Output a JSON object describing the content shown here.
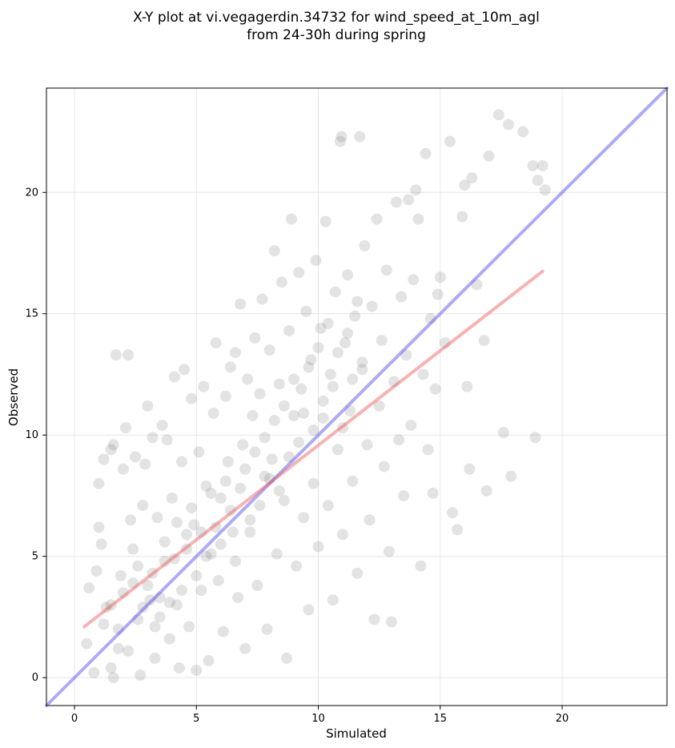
{
  "chart_data": {
    "type": "scatter",
    "title_lines": [
      "X-Y plot at vi.vegagerdin.34732 for wind_speed_at_10m_agl",
      "from 24-30h during spring"
    ],
    "xlabel": "Simulated",
    "ylabel": "Observed",
    "xlim": [
      -1.15,
      24.3
    ],
    "ylim": [
      -1.15,
      24.3
    ],
    "xticks": [
      0,
      5,
      10,
      15,
      20
    ],
    "yticks": [
      0,
      5,
      10,
      15,
      20
    ],
    "grid": true,
    "point_color": "#666666",
    "point_opacity": 0.18,
    "identity_line": {
      "color": "#4444ee",
      "from": [
        -1.15,
        -1.15
      ],
      "to": [
        24.3,
        24.3
      ]
    },
    "fit_line": {
      "color": "#ee5555",
      "from": [
        0.4,
        2.1
      ],
      "to": [
        19.2,
        16.75
      ]
    },
    "points": [
      [
        0.5,
        1.4
      ],
      [
        0.6,
        3.7
      ],
      [
        0.8,
        0.2
      ],
      [
        0.9,
        4.4
      ],
      [
        1.0,
        6.2
      ],
      [
        1.1,
        5.5
      ],
      [
        1.0,
        8.0
      ],
      [
        1.2,
        9.0
      ],
      [
        1.3,
        2.9
      ],
      [
        1.5,
        9.4
      ],
      [
        1.6,
        9.6
      ],
      [
        1.7,
        13.3
      ],
      [
        1.5,
        0.4
      ],
      [
        1.6,
        0.0
      ],
      [
        1.8,
        1.2
      ],
      [
        1.9,
        4.2
      ],
      [
        2.0,
        8.6
      ],
      [
        2.1,
        10.3
      ],
      [
        2.2,
        13.3
      ],
      [
        2.3,
        6.5
      ],
      [
        2.4,
        5.3
      ],
      [
        2.5,
        9.1
      ],
      [
        2.6,
        2.4
      ],
      [
        2.7,
        0.1
      ],
      [
        2.8,
        7.1
      ],
      [
        2.9,
        8.8
      ],
      [
        3.0,
        11.2
      ],
      [
        3.1,
        3.2
      ],
      [
        3.2,
        9.9
      ],
      [
        3.3,
        0.8
      ],
      [
        3.4,
        6.6
      ],
      [
        3.5,
        2.5
      ],
      [
        3.6,
        10.4
      ],
      [
        3.7,
        4.8
      ],
      [
        3.8,
        9.8
      ],
      [
        3.9,
        1.6
      ],
      [
        4.0,
        7.4
      ],
      [
        4.1,
        12.4
      ],
      [
        4.2,
        3.0
      ],
      [
        4.3,
        0.4
      ],
      [
        4.4,
        8.9
      ],
      [
        4.5,
        12.7
      ],
      [
        4.6,
        5.9
      ],
      [
        4.7,
        2.1
      ],
      [
        4.8,
        11.5
      ],
      [
        4.9,
        6.3
      ],
      [
        5.0,
        0.3
      ],
      [
        5.1,
        9.3
      ],
      [
        5.2,
        3.6
      ],
      [
        5.3,
        12.0
      ],
      [
        5.4,
        7.9
      ],
      [
        5.5,
        0.7
      ],
      [
        5.6,
        5.1
      ],
      [
        5.7,
        10.9
      ],
      [
        5.8,
        13.8
      ],
      [
        5.9,
        4.0
      ],
      [
        6.0,
        7.4
      ],
      [
        6.1,
        1.9
      ],
      [
        6.2,
        11.6
      ],
      [
        6.3,
        8.9
      ],
      [
        6.4,
        12.8
      ],
      [
        6.5,
        6.0
      ],
      [
        6.6,
        13.4
      ],
      [
        6.7,
        3.3
      ],
      [
        6.8,
        15.4
      ],
      [
        6.9,
        9.6
      ],
      [
        7.0,
        1.2
      ],
      [
        7.1,
        12.3
      ],
      [
        7.2,
        6.5
      ],
      [
        7.3,
        10.8
      ],
      [
        7.4,
        14.0
      ],
      [
        7.5,
        3.8
      ],
      [
        7.6,
        11.7
      ],
      [
        7.7,
        15.6
      ],
      [
        7.8,
        8.3
      ],
      [
        7.9,
        2.0
      ],
      [
        8.0,
        13.5
      ],
      [
        8.1,
        9.0
      ],
      [
        8.2,
        17.6
      ],
      [
        8.3,
        5.1
      ],
      [
        8.4,
        12.1
      ],
      [
        8.5,
        16.3
      ],
      [
        8.6,
        7.3
      ],
      [
        8.7,
        0.8
      ],
      [
        8.8,
        14.3
      ],
      [
        8.9,
        18.9
      ],
      [
        9.0,
        10.8
      ],
      [
        9.1,
        4.6
      ],
      [
        9.2,
        16.7
      ],
      [
        9.3,
        11.9
      ],
      [
        9.4,
        6.6
      ],
      [
        9.5,
        15.1
      ],
      [
        9.6,
        2.8
      ],
      [
        9.7,
        13.1
      ],
      [
        9.8,
        8.0
      ],
      [
        9.9,
        17.2
      ],
      [
        10.0,
        5.4
      ],
      [
        10.1,
        14.4
      ],
      [
        10.2,
        10.7
      ],
      [
        10.3,
        18.8
      ],
      [
        10.4,
        7.1
      ],
      [
        10.5,
        12.5
      ],
      [
        10.6,
        3.2
      ],
      [
        10.7,
        15.9
      ],
      [
        10.8,
        9.4
      ],
      [
        10.9,
        22.1
      ],
      [
        10.95,
        22.3
      ],
      [
        11.0,
        5.9
      ],
      [
        11.1,
        13.8
      ],
      [
        11.2,
        16.6
      ],
      [
        11.3,
        11.0
      ],
      [
        11.4,
        8.1
      ],
      [
        11.5,
        14.9
      ],
      [
        11.6,
        4.3
      ],
      [
        11.7,
        22.3
      ],
      [
        11.8,
        12.7
      ],
      [
        11.9,
        17.8
      ],
      [
        12.0,
        9.6
      ],
      [
        12.1,
        6.5
      ],
      [
        12.2,
        15.3
      ],
      [
        12.3,
        2.4
      ],
      [
        12.4,
        18.9
      ],
      [
        12.5,
        11.2
      ],
      [
        12.6,
        13.9
      ],
      [
        12.7,
        8.7
      ],
      [
        12.8,
        16.8
      ],
      [
        12.9,
        5.2
      ],
      [
        13.0,
        2.3
      ],
      [
        13.1,
        12.2
      ],
      [
        13.2,
        19.6
      ],
      [
        13.3,
        9.8
      ],
      [
        13.4,
        15.7
      ],
      [
        13.5,
        7.5
      ],
      [
        13.6,
        13.3
      ],
      [
        13.7,
        19.7
      ],
      [
        13.8,
        10.4
      ],
      [
        13.9,
        16.4
      ],
      [
        14.0,
        20.1
      ],
      [
        14.1,
        18.9
      ],
      [
        14.2,
        4.6
      ],
      [
        14.3,
        12.5
      ],
      [
        14.4,
        21.6
      ],
      [
        14.5,
        9.4
      ],
      [
        14.6,
        14.8
      ],
      [
        14.7,
        7.6
      ],
      [
        14.8,
        11.9
      ],
      [
        14.9,
        15.8
      ],
      [
        15.0,
        16.5
      ],
      [
        15.2,
        13.8
      ],
      [
        15.4,
        22.1
      ],
      [
        15.5,
        6.8
      ],
      [
        15.7,
        6.1
      ],
      [
        15.9,
        19.0
      ],
      [
        16.0,
        20.3
      ],
      [
        16.1,
        12.0
      ],
      [
        16.2,
        8.6
      ],
      [
        16.3,
        20.6
      ],
      [
        16.5,
        16.2
      ],
      [
        16.8,
        13.9
      ],
      [
        16.9,
        7.7
      ],
      [
        17.0,
        21.5
      ],
      [
        17.4,
        23.2
      ],
      [
        17.6,
        10.1
      ],
      [
        17.8,
        22.8
      ],
      [
        17.9,
        8.3
      ],
      [
        18.4,
        22.5
      ],
      [
        18.8,
        21.1
      ],
      [
        18.9,
        9.9
      ],
      [
        19.0,
        20.5
      ],
      [
        19.2,
        21.1
      ],
      [
        19.3,
        20.1
      ],
      [
        1.2,
        2.2
      ],
      [
        1.5,
        3.0
      ],
      [
        1.8,
        2.0
      ],
      [
        2.0,
        3.5
      ],
      [
        2.2,
        1.1
      ],
      [
        2.4,
        3.9
      ],
      [
        2.6,
        4.6
      ],
      [
        2.8,
        2.9
      ],
      [
        3.0,
        3.8
      ],
      [
        3.2,
        4.3
      ],
      [
        3.3,
        2.1
      ],
      [
        3.5,
        3.3
      ],
      [
        3.7,
        5.6
      ],
      [
        3.9,
        3.1
      ],
      [
        4.1,
        4.9
      ],
      [
        4.2,
        6.4
      ],
      [
        4.4,
        3.6
      ],
      [
        4.6,
        5.3
      ],
      [
        4.8,
        7.0
      ],
      [
        5.0,
        4.2
      ],
      [
        5.2,
        6.0
      ],
      [
        5.4,
        5.0
      ],
      [
        5.6,
        7.6
      ],
      [
        5.8,
        6.2
      ],
      [
        6.0,
        5.5
      ],
      [
        6.2,
        8.1
      ],
      [
        6.4,
        6.9
      ],
      [
        6.6,
        4.8
      ],
      [
        6.8,
        7.8
      ],
      [
        7.0,
        8.6
      ],
      [
        7.2,
        6.0
      ],
      [
        7.4,
        9.3
      ],
      [
        7.6,
        7.1
      ],
      [
        7.8,
        9.9
      ],
      [
        8.0,
        8.2
      ],
      [
        8.2,
        10.6
      ],
      [
        8.4,
        7.7
      ],
      [
        8.6,
        11.2
      ],
      [
        8.8,
        9.1
      ],
      [
        9.0,
        12.3
      ],
      [
        9.2,
        9.7
      ],
      [
        9.4,
        10.9
      ],
      [
        9.6,
        12.8
      ],
      [
        9.8,
        10.2
      ],
      [
        10.0,
        13.6
      ],
      [
        10.2,
        11.4
      ],
      [
        10.4,
        14.6
      ],
      [
        10.6,
        12.0
      ],
      [
        10.8,
        13.4
      ],
      [
        11.0,
        10.3
      ],
      [
        11.2,
        14.2
      ],
      [
        11.4,
        12.3
      ],
      [
        11.6,
        15.5
      ],
      [
        11.8,
        13.0
      ]
    ]
  }
}
